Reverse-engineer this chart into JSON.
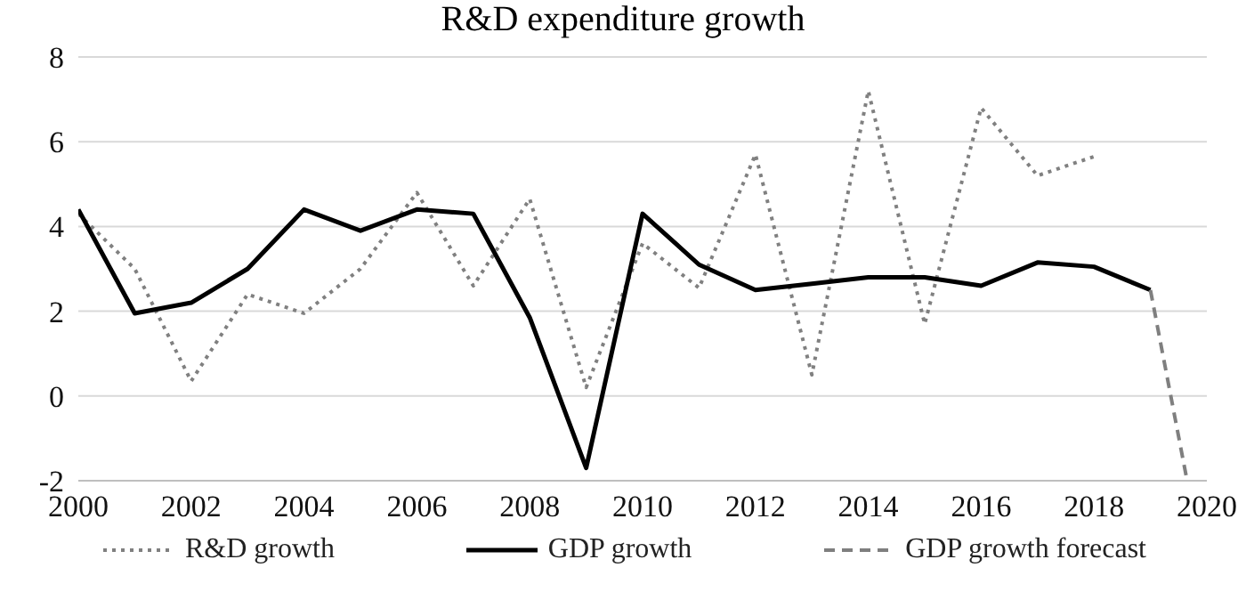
{
  "chart_data": {
    "type": "line",
    "title": "R&D expenditure growth",
    "series": [
      {
        "name": "R&D growth",
        "color": "#808080",
        "line_style": "dotted",
        "x": [
          2000,
          2001,
          2002,
          2003,
          2004,
          2005,
          2006,
          2007,
          2008,
          2009,
          2010,
          2011,
          2012,
          2013,
          2014,
          2015,
          2016,
          2017,
          2018
        ],
        "values": [
          4.3,
          3.0,
          0.35,
          2.4,
          1.95,
          3.0,
          4.8,
          2.6,
          4.65,
          0.2,
          3.6,
          2.55,
          5.7,
          0.5,
          7.2,
          1.7,
          6.8,
          5.2,
          5.65
        ]
      },
      {
        "name": "GDP growth",
        "color": "#000000",
        "line_style": "solid",
        "x": [
          2000,
          2001,
          2002,
          2003,
          2004,
          2005,
          2006,
          2007,
          2008,
          2009,
          2010,
          2011,
          2012,
          2013,
          2014,
          2015,
          2016,
          2017,
          2018,
          2019
        ],
        "values": [
          4.4,
          1.95,
          2.2,
          3.0,
          4.4,
          3.9,
          4.4,
          4.3,
          1.85,
          -1.7,
          4.3,
          3.1,
          2.5,
          2.65,
          2.8,
          2.8,
          2.6,
          3.15,
          3.05,
          2.5
        ]
      },
      {
        "name": "GDP growth forecast",
        "color": "#7f7f7f",
        "line_style": "dashed",
        "x": [
          2019,
          2019.65
        ],
        "values": [
          2.5,
          -2
        ]
      }
    ],
    "xlim": [
      2000,
      2020
    ],
    "xticks": [
      2000,
      2002,
      2004,
      2006,
      2008,
      2010,
      2012,
      2014,
      2016,
      2018,
      2020
    ],
    "ylim": [
      -2,
      8
    ],
    "yticks": [
      -2,
      0,
      2,
      4,
      6,
      8
    ],
    "grid": "y",
    "legend": "bottom",
    "marker": "none"
  }
}
